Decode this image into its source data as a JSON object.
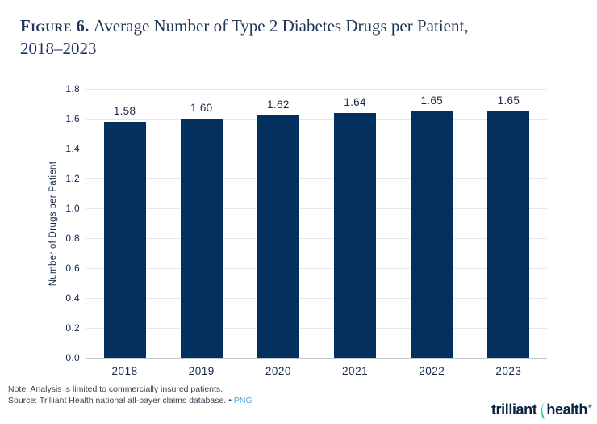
{
  "figure": {
    "label": "Figure 6.",
    "title_line1": "Average Number of Type 2 Diabetes Drugs per Patient,",
    "title_line2": "2018–2023"
  },
  "chart_data": {
    "type": "bar",
    "categories": [
      "2018",
      "2019",
      "2020",
      "2021",
      "2022",
      "2023"
    ],
    "values": [
      1.58,
      1.6,
      1.62,
      1.64,
      1.65,
      1.65
    ],
    "value_labels": [
      "1.58",
      "1.60",
      "1.62",
      "1.64",
      "1.65",
      "1.65"
    ],
    "title": "Average Number of Type 2 Diabetes Drugs per Patient, 2018–2023",
    "xlabel": "",
    "ylabel": "Number of Drugs per Patient",
    "ylim": [
      0,
      1.8
    ],
    "ytick_step": 0.2,
    "ytick_labels": [
      "1.8",
      "1.6",
      "1.4",
      "1.2",
      "1.0",
      "0.8",
      "0.6",
      "0.4",
      "0.2",
      "0.0"
    ],
    "grid": true,
    "legend": "none",
    "bar_color": "#04305f"
  },
  "footer": {
    "note": "Note: Analysis is limited to commercially insured patients.",
    "source": "Source: Trilliant Health national all-payer claims database.",
    "separator": "•",
    "link": "PNG",
    "link_color": "#4ba5e5"
  },
  "logo": {
    "part1": "trilliant",
    "part2": "health",
    "registered": "®",
    "navy": "#0a2342",
    "green": "#2ed18e"
  }
}
